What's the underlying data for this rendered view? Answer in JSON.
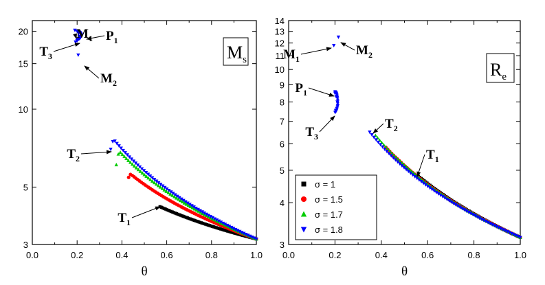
{
  "chart_data": [
    {
      "type": "scatter",
      "box_label": "M",
      "box_label_sub": "s",
      "xlabel": "θ",
      "xlim": [
        0.0,
        1.0
      ],
      "ylim": [
        3,
        22
      ],
      "yscale": "log",
      "x_ticks": [
        "0.0",
        "0.2",
        "0.4",
        "0.6",
        "0.8",
        "1.0"
      ],
      "y_ticks": [
        {
          "value": 3,
          "label": "3"
        },
        {
          "value": 5,
          "label": "5"
        },
        {
          "value": 10,
          "label": "10"
        },
        {
          "value": 15,
          "label": "15"
        },
        {
          "value": 20,
          "label": "20"
        }
      ],
      "series": [
        {
          "color": "#000000",
          "marker": "square",
          "theta_start": 0.57,
          "start_value": 4.2,
          "peak_theta": 0.57,
          "peak_value": 4.2,
          "end_value": 3.15
        },
        {
          "color": "#ff0000",
          "marker": "circle",
          "theta_start": 0.43,
          "start_value": 5.45,
          "peak_theta": 0.44,
          "peak_value": 5.6,
          "end_value": 3.15
        },
        {
          "color": "#00cc00",
          "marker": "triangle-up",
          "theta_start": 0.375,
          "start_value": 6.1,
          "peak_theta": 0.39,
          "peak_value": 6.85,
          "end_value": 3.15
        },
        {
          "color": "#0000ff",
          "marker": "triangle-down",
          "theta_start": 0.35,
          "start_value": 7.0,
          "peak_theta": 0.365,
          "peak_value": 7.6,
          "end_value": 3.15
        }
      ],
      "branch": [
        {
          "x": 0.19,
          "y": 20.2
        },
        {
          "x": 0.2,
          "y": 20.0
        },
        {
          "x": 0.207,
          "y": 19.6
        },
        {
          "x": 0.21,
          "y": 19.1
        },
        {
          "x": 0.208,
          "y": 18.7
        },
        {
          "x": 0.2,
          "y": 18.4
        },
        {
          "x": 0.193,
          "y": 18.2
        },
        {
          "x": 0.205,
          "y": 16.2
        }
      ],
      "annotations": [
        {
          "text": "M",
          "sub": "1",
          "x": 0.19,
          "y": 20.0
        },
        {
          "text": "P",
          "sub": "1",
          "x": 0.212,
          "y": 19.6
        },
        {
          "text": "T",
          "sub": "3",
          "x": 0.193,
          "y": 18.2
        },
        {
          "text": "M",
          "sub": "2",
          "x": 0.205,
          "y": 16.2
        },
        {
          "text": "T",
          "sub": "2",
          "x": 0.35,
          "y": 7.0
        },
        {
          "text": "T",
          "sub": "1",
          "x": 0.57,
          "y": 4.2
        }
      ]
    },
    {
      "type": "scatter",
      "box_label": "R",
      "box_label_sub": "e",
      "xlabel": "θ",
      "xlim": [
        0.0,
        1.0
      ],
      "ylim": [
        3,
        14
      ],
      "yscale": "log",
      "x_ticks": [
        "0.0",
        "0.2",
        "0.4",
        "0.6",
        "0.8",
        "1.0"
      ],
      "y_ticks": [
        {
          "value": 3,
          "label": "3"
        },
        {
          "value": 4,
          "label": "4"
        },
        {
          "value": 5,
          "label": "5"
        },
        {
          "value": 6,
          "label": "6"
        },
        {
          "value": 7,
          "label": "7"
        },
        {
          "value": 8,
          "label": "8"
        },
        {
          "value": 9,
          "label": "9"
        },
        {
          "value": 10,
          "label": "10"
        },
        {
          "value": 11,
          "label": "11"
        },
        {
          "value": 12,
          "label": "12"
        },
        {
          "value": 13,
          "label": "13"
        },
        {
          "value": 14,
          "label": "14"
        }
      ],
      "series": [
        {
          "color": "#000000",
          "marker": "square",
          "theta_start": 0.56,
          "start_value": 4.8,
          "end_value": 3.15
        },
        {
          "color": "#ff0000",
          "marker": "circle",
          "theta_start": 0.42,
          "start_value": 5.85,
          "end_value": 3.15
        },
        {
          "color": "#00cc00",
          "marker": "triangle-up",
          "theta_start": 0.375,
          "start_value": 6.35,
          "end_value": 3.15
        },
        {
          "color": "#0000ff",
          "marker": "triangle-down",
          "theta_start": 0.35,
          "start_value": 6.5,
          "end_value": 3.15
        }
      ],
      "branch": [
        {
          "x": 0.2,
          "y": 8.5
        },
        {
          "x": 0.205,
          "y": 8.3
        },
        {
          "x": 0.21,
          "y": 8.0
        },
        {
          "x": 0.212,
          "y": 7.8
        },
        {
          "x": 0.208,
          "y": 7.65
        },
        {
          "x": 0.203,
          "y": 7.55
        },
        {
          "x": 0.195,
          "y": 11.8
        },
        {
          "x": 0.215,
          "y": 12.5
        }
      ],
      "annotations": [
        {
          "text": "M",
          "sub": "1",
          "x": 0.195,
          "y": 11.8
        },
        {
          "text": "M",
          "sub": "2",
          "x": 0.215,
          "y": 12.5
        },
        {
          "text": "P",
          "sub": "1",
          "x": 0.2,
          "y": 8.5
        },
        {
          "text": "T",
          "sub": "3",
          "x": 0.203,
          "y": 7.55
        },
        {
          "text": "T",
          "sub": "2",
          "x": 0.355,
          "y": 6.5
        },
        {
          "text": "T",
          "sub": "1",
          "x": 0.56,
          "y": 4.8
        }
      ],
      "legend": {
        "position": "bottom-left",
        "entries": [
          "σ = 1",
          "σ = 1.5",
          "σ = 1.7",
          "σ = 1.8"
        ]
      }
    }
  ]
}
